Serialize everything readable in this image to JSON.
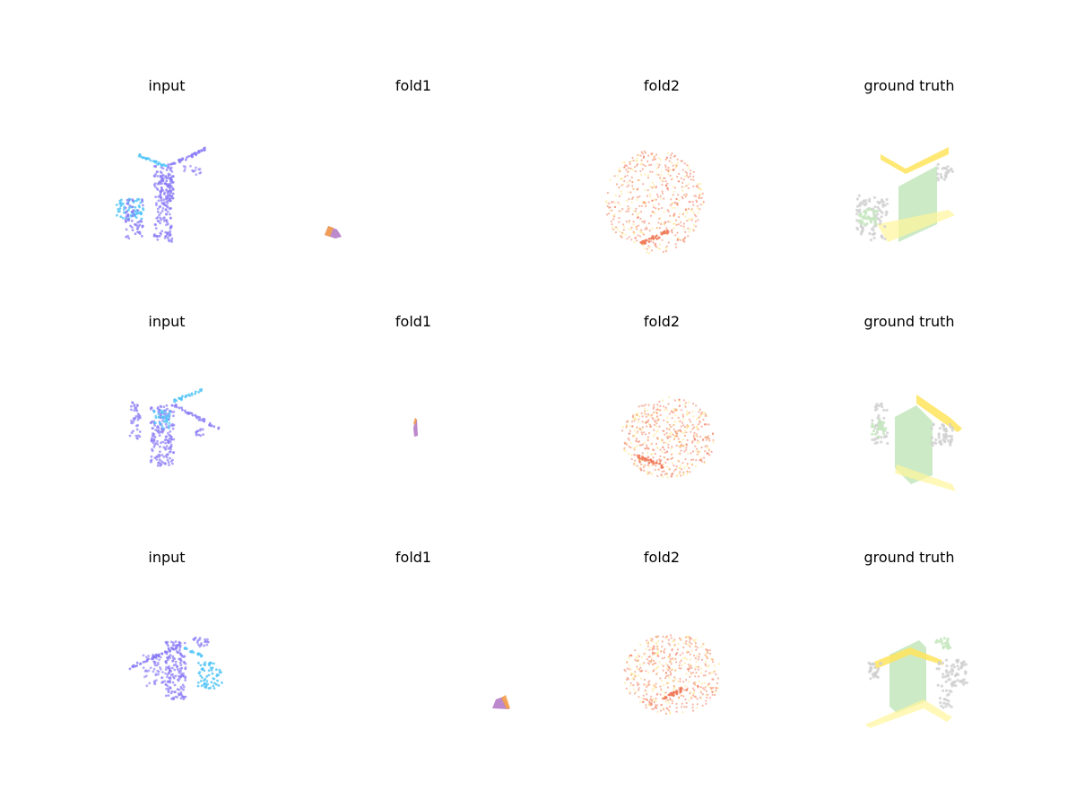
{
  "figure": {
    "rows": [
      {
        "titles": [
          "input",
          "fold1",
          "fold2",
          "ground truth"
        ]
      },
      {
        "titles": [
          "input",
          "fold1",
          "fold2",
          "ground truth"
        ]
      },
      {
        "titles": [
          "input",
          "fold1",
          "fold2",
          "ground truth"
        ]
      }
    ]
  },
  "colors": {
    "input_purple": "#8a7cf6",
    "input_cyan": "#4fc3f7",
    "fold1_purple": "#b47cc7",
    "fold1_orange": "#f5a04a",
    "fold2_red": "#f07a5a",
    "fold2_yellow": "#ffe27a",
    "gt_green": "#c6e8c0",
    "gt_yellow": "#ffe45c",
    "gt_gray": "#cfcfcf"
  }
}
